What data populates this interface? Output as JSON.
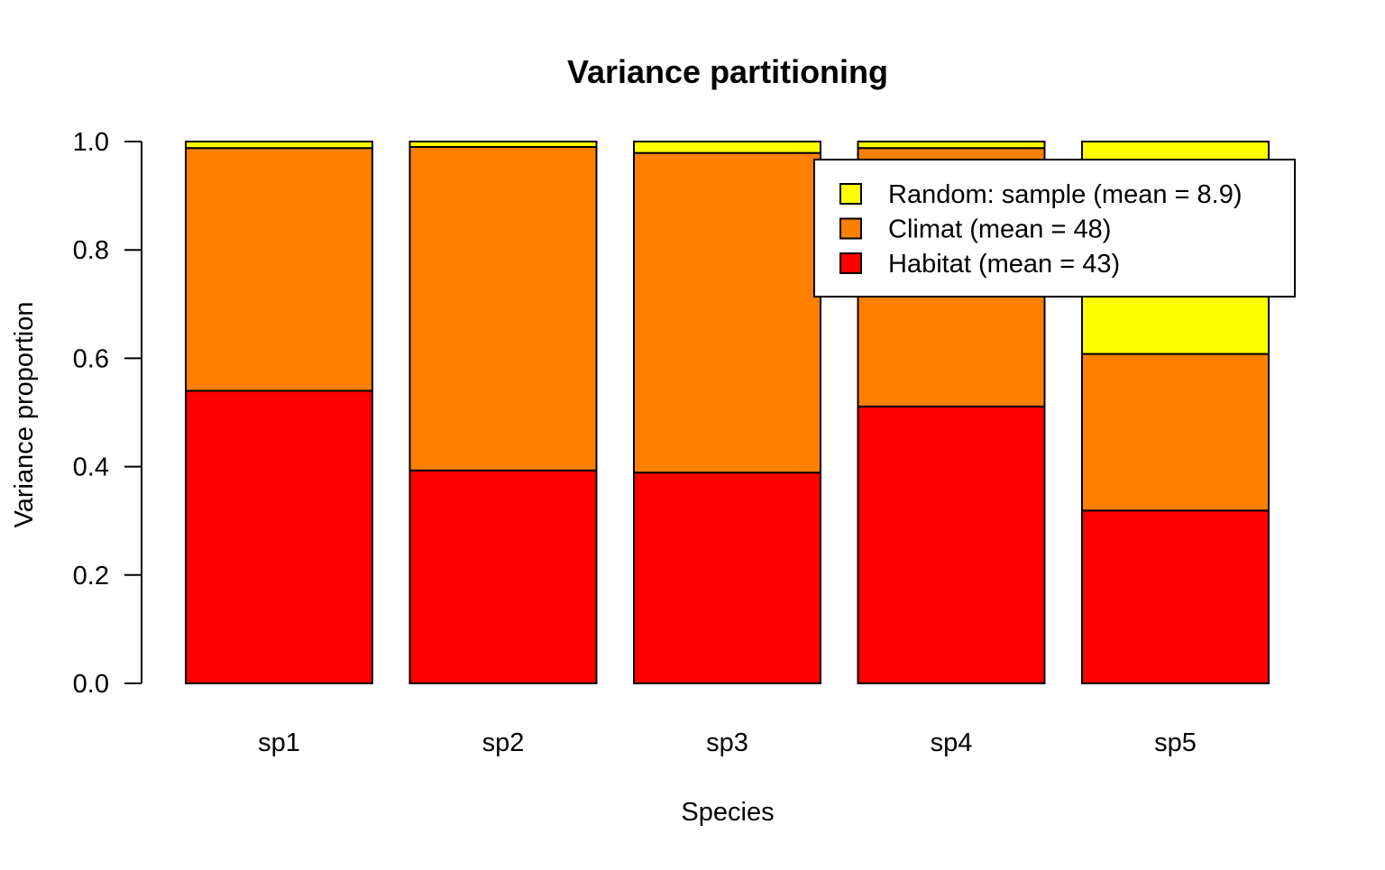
{
  "chart_data": {
    "type": "bar",
    "stacked": true,
    "title": "Variance partitioning",
    "xlabel": "Species",
    "ylabel": "Variance proportion",
    "categories": [
      "sp1",
      "sp2",
      "sp3",
      "sp4",
      "sp5"
    ],
    "ylim": [
      0,
      1
    ],
    "yticks": [
      "0.0",
      "0.2",
      "0.4",
      "0.6",
      "0.8",
      "1.0"
    ],
    "grid": false,
    "legend_position": "top-right",
    "series": [
      {
        "name": "Habitat (mean = 43)",
        "color": "#ff0000",
        "values": [
          0.54,
          0.393,
          0.389,
          0.511,
          0.319
        ]
      },
      {
        "name": "Climat (mean = 48)",
        "color": "#ff7f00",
        "values": [
          0.448,
          0.597,
          0.59,
          0.477,
          0.289
        ]
      },
      {
        "name": "Random: sample (mean = 8.9)",
        "color": "#ffff00",
        "values": [
          0.012,
          0.01,
          0.021,
          0.012,
          0.392
        ]
      }
    ],
    "legend_order": [
      "Random: sample (mean = 8.9)",
      "Climat (mean = 48)",
      "Habitat (mean = 43)"
    ]
  }
}
